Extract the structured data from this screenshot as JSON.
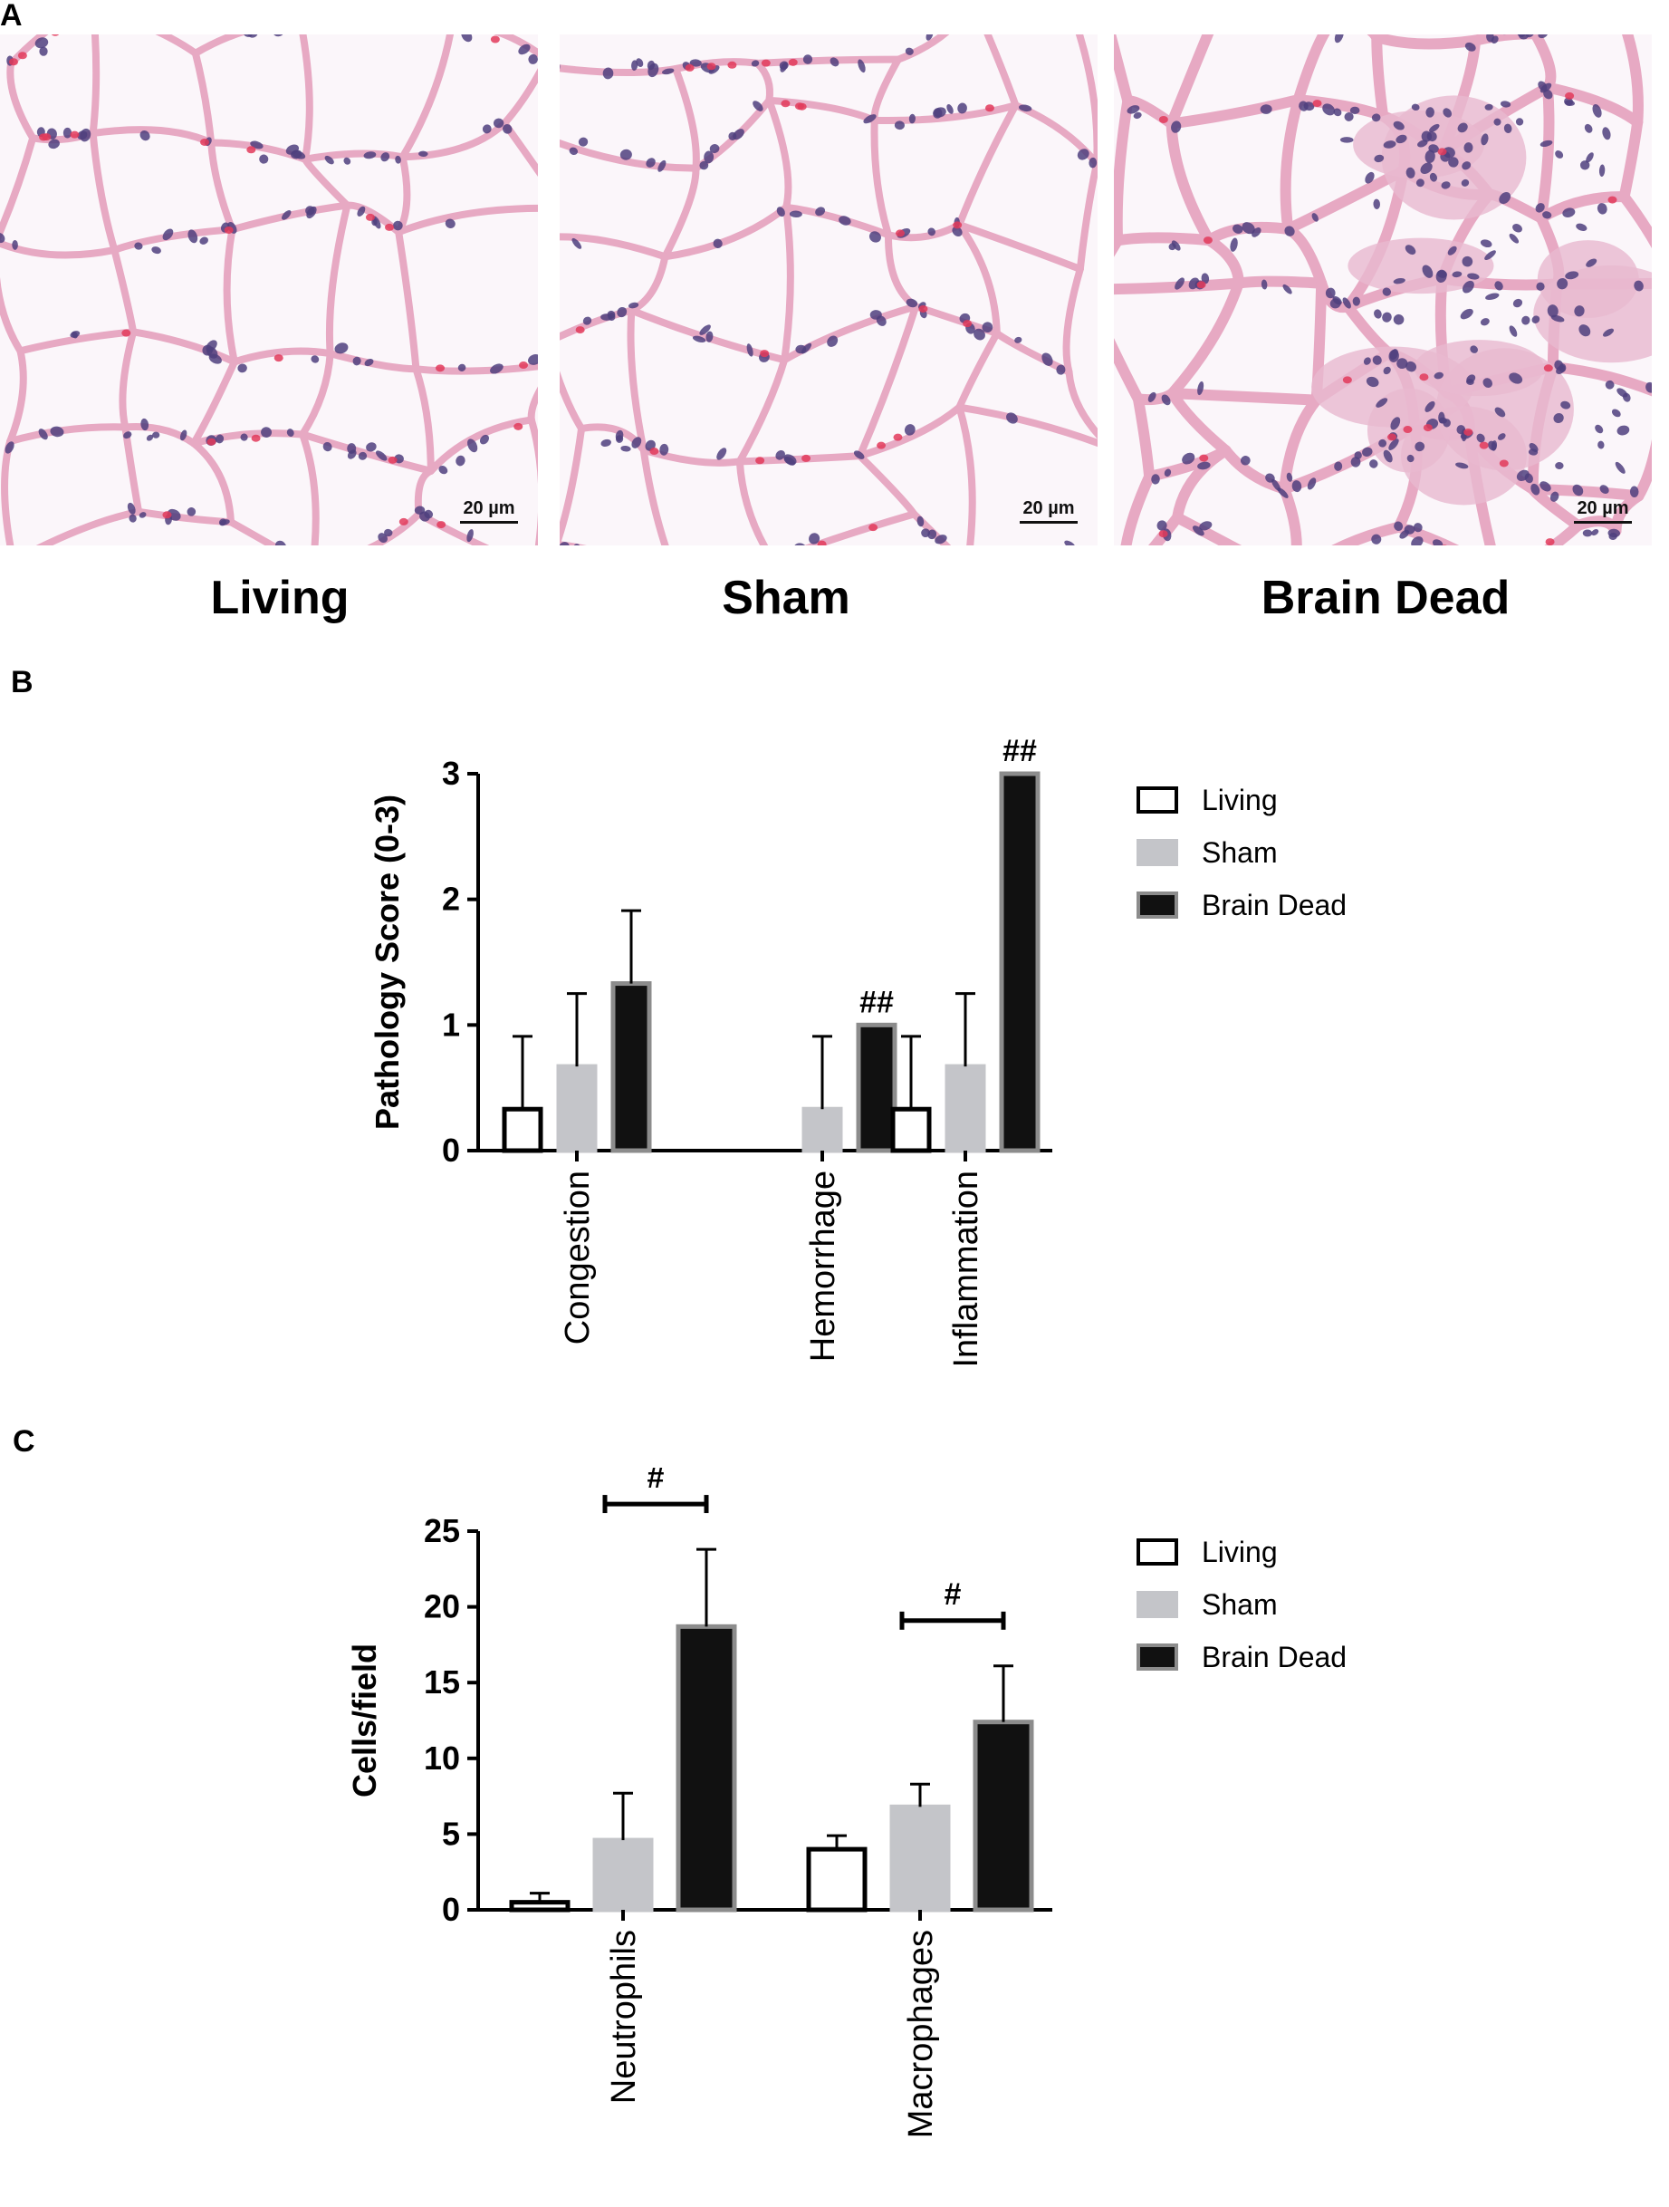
{
  "panels": {
    "a_label": "A",
    "b_label": "B",
    "c_label": "C"
  },
  "micrographs": [
    {
      "label": "Living",
      "scale": "20 µm"
    },
    {
      "label": "Sham",
      "scale": "20 µm"
    },
    {
      "label": "Brain Dead",
      "scale": "20 µm"
    }
  ],
  "colors": {
    "tissue_pink": "#e7a9c3",
    "nucleus": "#4f3f7e",
    "rbc": "#e23a5a",
    "living_bar": "#ffffff",
    "sham_bar": "#c4c5c9",
    "brain_dead_bar": "#111111"
  },
  "chart_data": [
    {
      "type": "bar",
      "panel": "B",
      "categories": [
        "Congestion",
        "Hemorrhage",
        "Inflammation"
      ],
      "series": [
        {
          "name": "Living",
          "values": [
            0.33,
            0,
            0.33
          ],
          "errors": [
            0.58,
            0,
            0.58
          ]
        },
        {
          "name": "Sham",
          "values": [
            0.67,
            0.33,
            0.67
          ],
          "errors": [
            0.58,
            0.58,
            0.58
          ]
        },
        {
          "name": "Brain Dead",
          "values": [
            1.33,
            1.0,
            3.0
          ],
          "errors": [
            0.58,
            0,
            0
          ]
        }
      ],
      "annotations": [
        {
          "category": "Hemorrhage",
          "series": "Brain Dead",
          "text": "##"
        },
        {
          "category": "Inflammation",
          "series": "Brain Dead",
          "text": "##"
        }
      ],
      "ylabel": "Pathology Score (0-3)",
      "ylim": [
        0,
        3
      ],
      "yticks": [
        0,
        1,
        2,
        3
      ],
      "legend": "right"
    },
    {
      "type": "bar",
      "panel": "C",
      "categories": [
        "Neutrophils",
        "Macrophages"
      ],
      "series": [
        {
          "name": "Living",
          "values": [
            0.5,
            4.0
          ],
          "errors": [
            0.6,
            0.9
          ]
        },
        {
          "name": "Sham",
          "values": [
            4.6,
            6.8
          ],
          "errors": [
            3.1,
            1.5
          ]
        },
        {
          "name": "Brain Dead",
          "values": [
            18.7,
            12.4
          ],
          "errors": [
            5.1,
            3.7
          ]
        }
      ],
      "annotations": [
        {
          "category": "Neutrophils",
          "text": "#"
        },
        {
          "category": "Macrophages",
          "text": "#"
        }
      ],
      "ylabel": "Cells/field",
      "ylim": [
        0,
        25
      ],
      "yticks": [
        0,
        5,
        10,
        15,
        20,
        25
      ],
      "legend": "right"
    }
  ]
}
